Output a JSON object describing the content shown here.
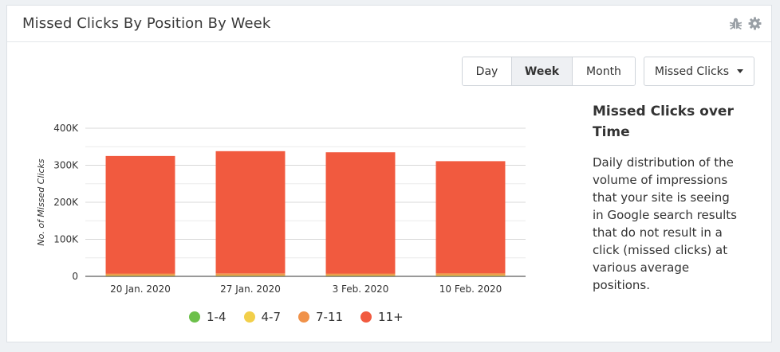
{
  "panel": {
    "title": "Missed Clicks By Position By Week",
    "icons": [
      "bug-icon",
      "gear-icon"
    ]
  },
  "toolbar": {
    "period_buttons": [
      "Day",
      "Week",
      "Month"
    ],
    "active_period": "Week",
    "metric_dropdown": "Missed Clicks"
  },
  "info": {
    "title": "Missed Clicks over Time",
    "description": "Daily distribution of the volume of impressions that your site is seeing in Google search results that do not result in a click (missed clicks) at various average positions."
  },
  "legend": [
    {
      "label": "1-4",
      "color": "#6cc04a"
    },
    {
      "label": "4-7",
      "color": "#f2cf4a"
    },
    {
      "label": "7-11",
      "color": "#f0924a"
    },
    {
      "label": "11+",
      "color": "#f15a3f"
    }
  ],
  "chart_data": {
    "type": "bar",
    "stacked": true,
    "categories": [
      "20 Jan. 2020",
      "27 Jan. 2020",
      "3 Feb. 2020",
      "10 Feb. 2020"
    ],
    "series": [
      {
        "name": "1-4",
        "color": "#6cc04a",
        "values": [
          500,
          500,
          500,
          500
        ]
      },
      {
        "name": "4-7",
        "color": "#f2cf4a",
        "values": [
          3000,
          3000,
          3000,
          3500
        ]
      },
      {
        "name": "7-11",
        "color": "#f0924a",
        "values": [
          4000,
          4500,
          4000,
          4500
        ]
      },
      {
        "name": "11+",
        "color": "#f15a3f",
        "values": [
          317500,
          330000,
          327500,
          302500
        ]
      }
    ],
    "ylabel": "No. of Missed Clicks",
    "xlabel": "",
    "ylim": [
      0,
      400000
    ],
    "yticks": [
      0,
      100000,
      200000,
      300000,
      400000
    ],
    "ytick_labels": [
      "0",
      "100K",
      "200K",
      "300K",
      "400K"
    ],
    "grid": true
  }
}
